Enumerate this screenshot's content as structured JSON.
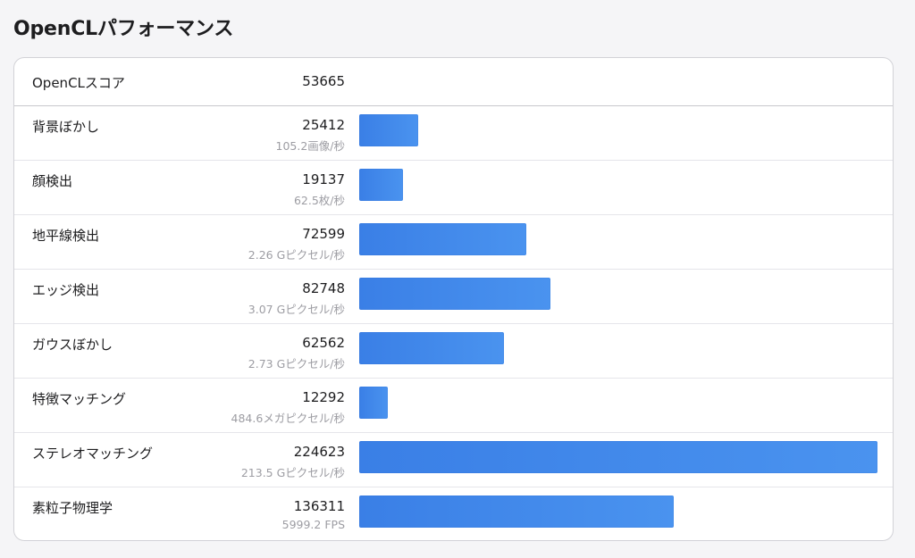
{
  "page": {
    "title": "OpenCLパフォーマンス"
  },
  "summary": {
    "label": "OpenCLスコア",
    "score": "53665"
  },
  "chart_data": {
    "type": "bar",
    "orientation": "horizontal",
    "title": "OpenCLパフォーマンス",
    "categories": [
      "背景ぼかし",
      "顔検出",
      "地平線検出",
      "エッジ検出",
      "ガウスぼかし",
      "特徴マッチング",
      "ステレオマッチング",
      "素粒子物理学"
    ],
    "values": [
      25412,
      19137,
      72599,
      82748,
      62562,
      12292,
      224623,
      136311
    ],
    "xlim": [
      0,
      224623
    ],
    "grid": false,
    "bar_color": "#3b82e8"
  },
  "rows": [
    {
      "name": "背景ぼかし",
      "score": "25412",
      "rate": "105.2画像/秒"
    },
    {
      "name": "顔検出",
      "score": "19137",
      "rate": "62.5枚/秒"
    },
    {
      "name": "地平線検出",
      "score": "72599",
      "rate": "2.26 Gピクセル/秒"
    },
    {
      "name": "エッジ検出",
      "score": "82748",
      "rate": "3.07 Gピクセル/秒"
    },
    {
      "name": "ガウスぼかし",
      "score": "62562",
      "rate": "2.73 Gピクセル/秒"
    },
    {
      "name": "特徴マッチング",
      "score": "12292",
      "rate": "484.6メガピクセル/秒"
    },
    {
      "name": "ステレオマッチング",
      "score": "224623",
      "rate": "213.5 Gピクセル/秒"
    },
    {
      "name": "素粒子物理学",
      "score": "136311",
      "rate": "5999.2 FPS"
    }
  ]
}
